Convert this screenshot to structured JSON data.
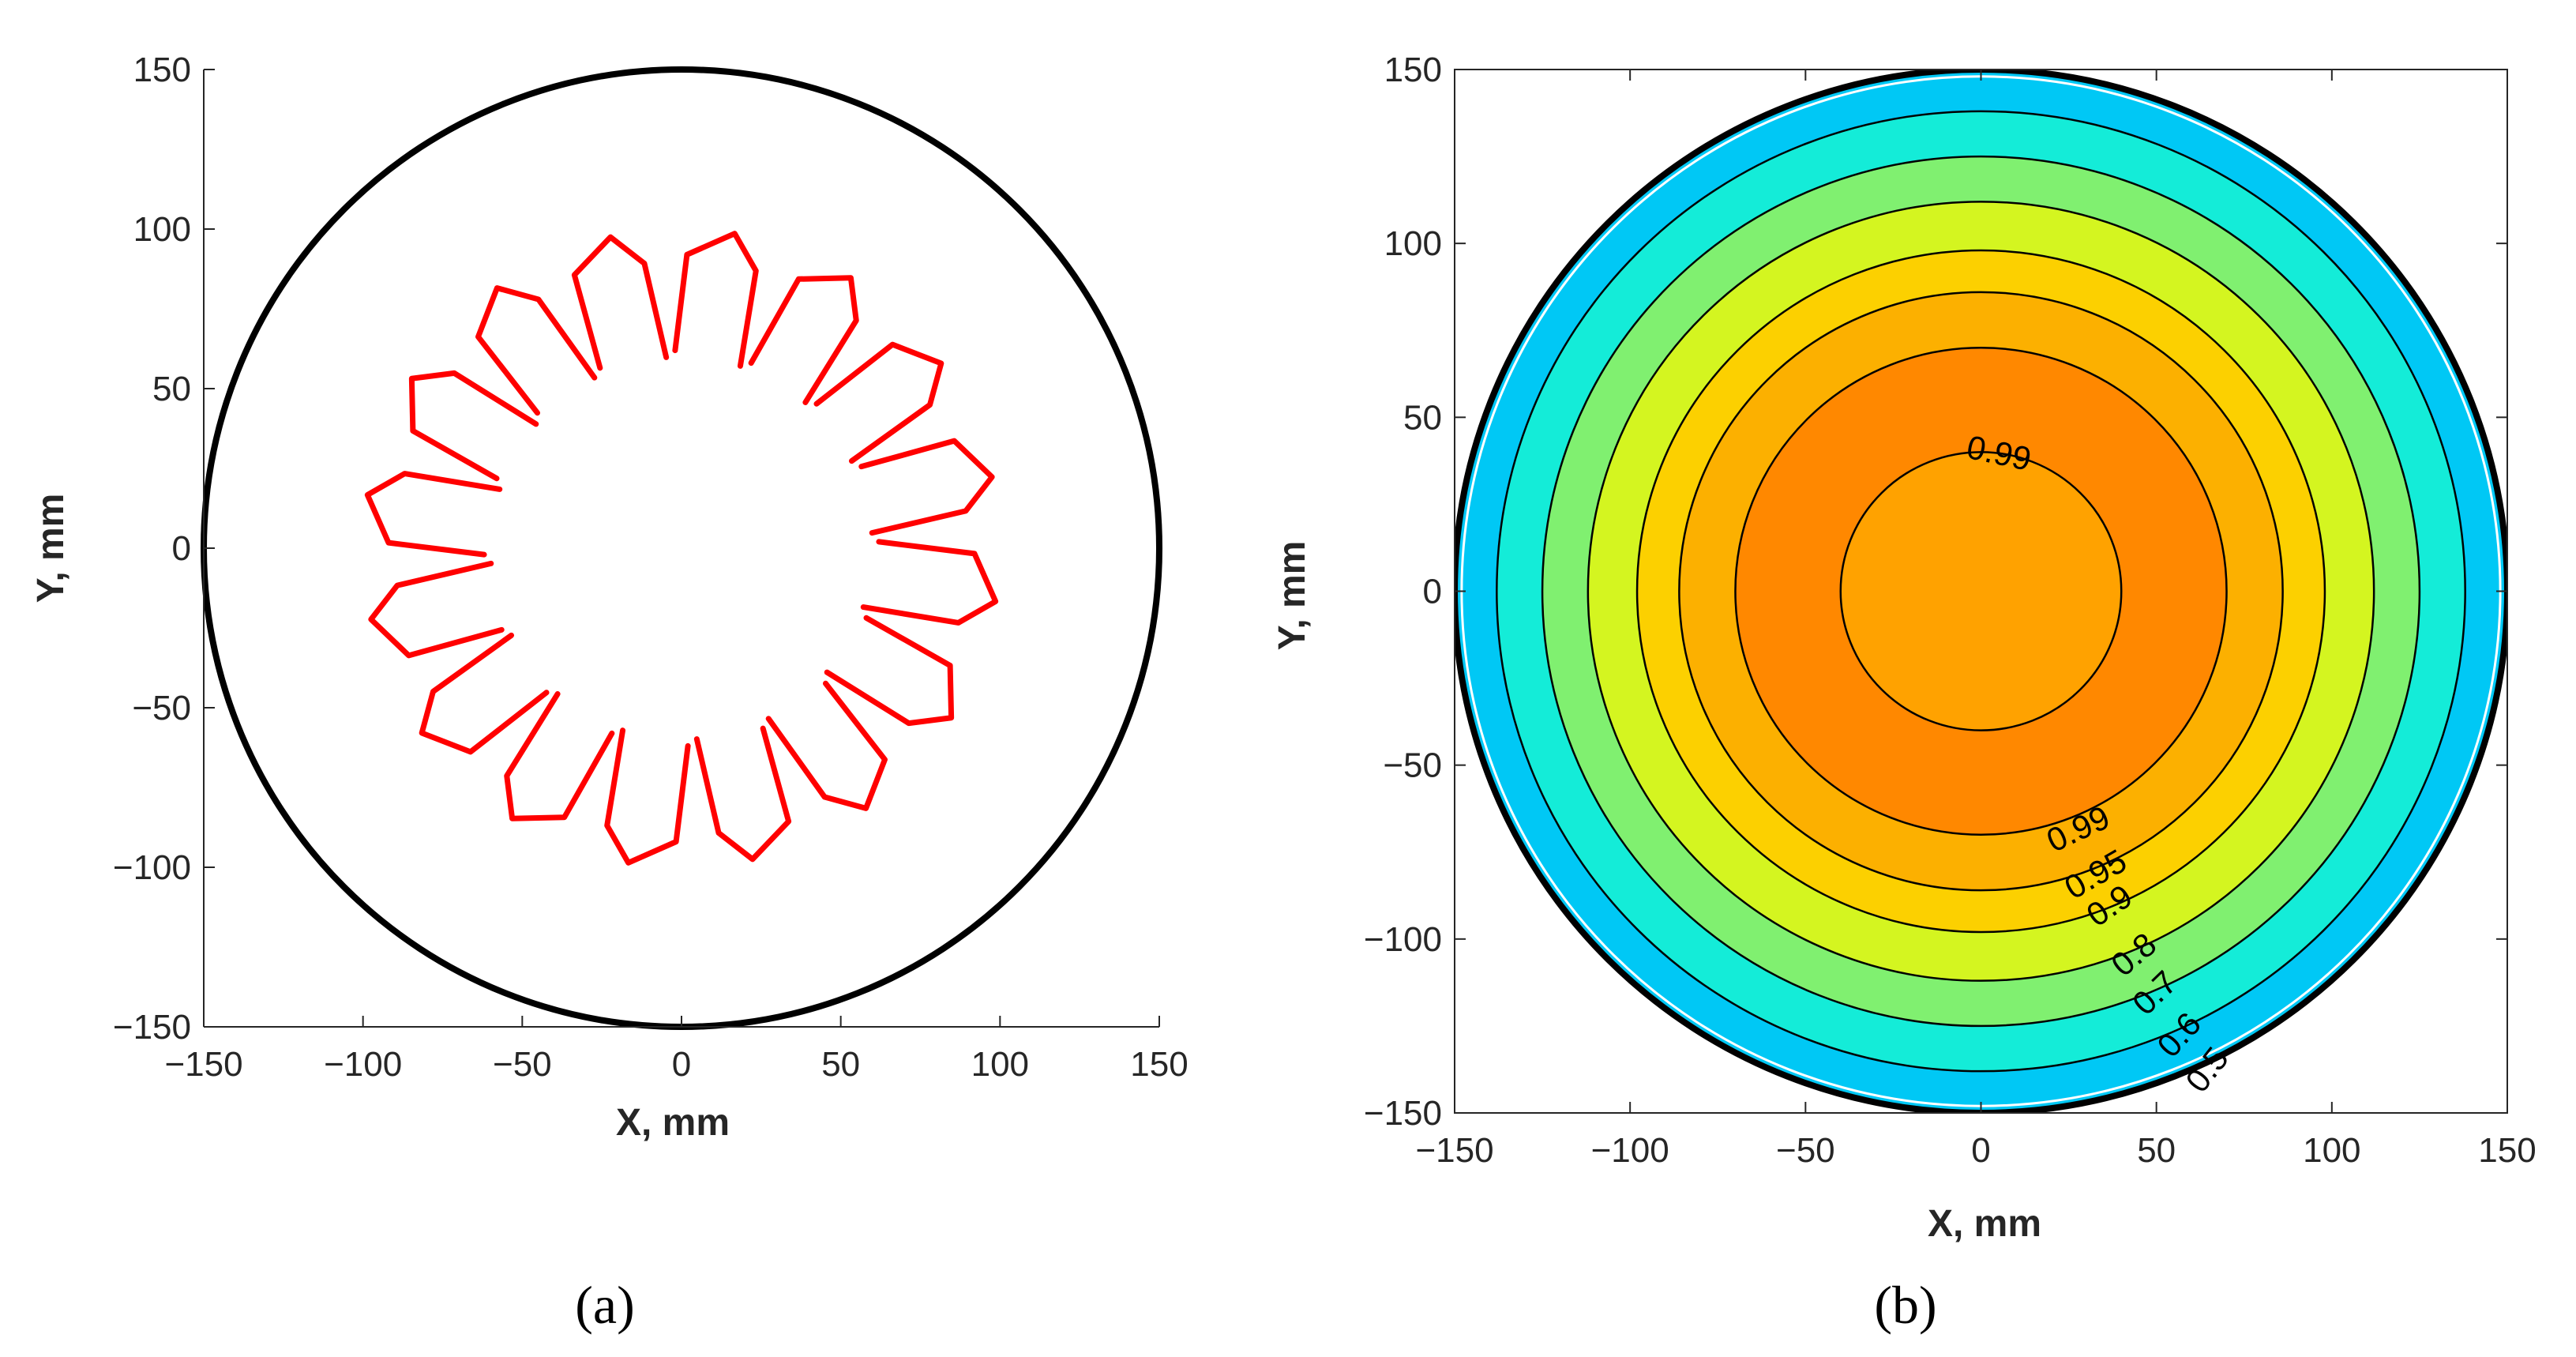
{
  "panels": [
    "(a)",
    "(b)"
  ],
  "chart_data": [
    {
      "type": "line",
      "panel": "(a)",
      "xlabel": "X, mm",
      "ylabel": "Y, mm",
      "xlim": [
        -150,
        150
      ],
      "ylim": [
        -150,
        150
      ],
      "xticks": [
        -150,
        -100,
        -50,
        0,
        50,
        100,
        150
      ],
      "yticks": [
        -150,
        -100,
        -50,
        0,
        50,
        100,
        150
      ],
      "boundary": {
        "shape": "circle",
        "radius": 150,
        "color": "#000000"
      },
      "rosette": {
        "petals": 16,
        "outer_radius": 100,
        "inner_radius": 60,
        "shoulder_radius": 90,
        "color": "#ff0000"
      },
      "grid": false
    },
    {
      "type": "contour",
      "panel": "(b)",
      "xlabel": "X, mm",
      "ylabel": "Y, mm",
      "xlim": [
        -150,
        150
      ],
      "ylim": [
        -150,
        150
      ],
      "xticks": [
        -150,
        -100,
        -50,
        0,
        50,
        100,
        150
      ],
      "yticks": [
        -150,
        -100,
        -50,
        0,
        50,
        100,
        150
      ],
      "boundary": {
        "shape": "circle",
        "radius": 150,
        "color": "#000000"
      },
      "levels": [
        {
          "radius": 150,
          "color": "#00c8f5"
        },
        {
          "radius": 138,
          "color": "#14ecd8"
        },
        {
          "radius": 125,
          "color": "#80f070"
        },
        {
          "radius": 112,
          "color": "#d4f520"
        },
        {
          "radius": 98,
          "color": "#fcd000"
        },
        {
          "radius": 86,
          "color": "#fcb000"
        },
        {
          "radius": 70,
          "color": "#ff8800"
        },
        {
          "radius": 40,
          "color": "#ffa200"
        }
      ],
      "contour_labels": [
        {
          "text": "0.99",
          "x": 5,
          "y": 39,
          "angle": 12
        },
        {
          "text": "0.99",
          "x": 28,
          "y": -69,
          "angle": -25
        },
        {
          "text": "0.95",
          "x": 33,
          "y": -82,
          "angle": -30
        },
        {
          "text": "0.9",
          "x": 37,
          "y": -91,
          "angle": -34
        },
        {
          "text": "0.8",
          "x": 44,
          "y": -105,
          "angle": -40
        },
        {
          "text": "0.7",
          "x": 50,
          "y": -116,
          "angle": -44
        },
        {
          "text": "0.6",
          "x": 57,
          "y": -128,
          "angle": -48
        },
        {
          "text": "0.5",
          "x": 65,
          "y": -138,
          "angle": -52
        }
      ],
      "grid": false
    }
  ]
}
